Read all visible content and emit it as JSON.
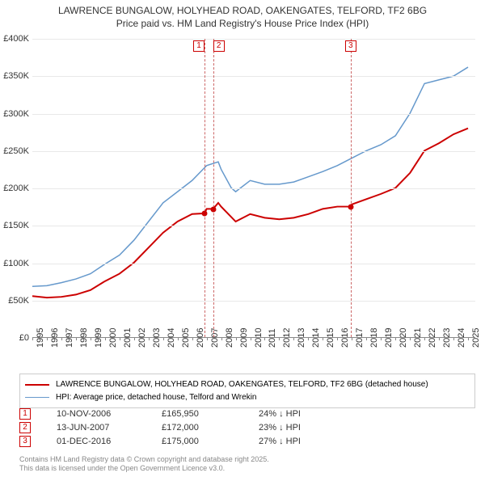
{
  "title_line1": "LAWRENCE BUNGALOW, HOLYHEAD ROAD, OAKENGATES, TELFORD, TF2 6BG",
  "title_line2": "Price paid vs. HM Land Registry's House Price Index (HPI)",
  "chart": {
    "type": "line",
    "background_color": "#ffffff",
    "grid_color": "#e8e8e8",
    "axis_color": "#888888",
    "text_color": "#333333",
    "tick_fontsize": 11,
    "ylim": [
      0,
      400000
    ],
    "ytick_step": 50000,
    "yticks": [
      "£0",
      "£50K",
      "£100K",
      "£150K",
      "£200K",
      "£250K",
      "£300K",
      "£350K",
      "£400K"
    ],
    "xlim": [
      1995,
      2025.5
    ],
    "xticks": [
      "1995",
      "1996",
      "1997",
      "1998",
      "1999",
      "2000",
      "2001",
      "2002",
      "2003",
      "2004",
      "2005",
      "2006",
      "2007",
      "2008",
      "2009",
      "2010",
      "2011",
      "2012",
      "2013",
      "2014",
      "2015",
      "2016",
      "2017",
      "2018",
      "2019",
      "2020",
      "2021",
      "2022",
      "2023",
      "2024",
      "2025"
    ],
    "series": [
      {
        "name": "LAWRENCE BUNGALOW, HOLYHEAD ROAD, OAKENGATES, TELFORD, TF2 6BG (detached house)",
        "color": "#cc0000",
        "line_width": 2,
        "data": [
          [
            1995,
            55000
          ],
          [
            1996,
            53000
          ],
          [
            1997,
            54000
          ],
          [
            1998,
            57000
          ],
          [
            1999,
            63000
          ],
          [
            2000,
            75000
          ],
          [
            2001,
            85000
          ],
          [
            2002,
            100000
          ],
          [
            2003,
            120000
          ],
          [
            2004,
            140000
          ],
          [
            2005,
            155000
          ],
          [
            2006,
            165000
          ],
          [
            2006.86,
            165950
          ],
          [
            2007,
            172000
          ],
          [
            2007.45,
            172000
          ],
          [
            2007.8,
            180000
          ],
          [
            2008,
            175000
          ],
          [
            2008.5,
            165000
          ],
          [
            2009,
            155000
          ],
          [
            2010,
            165000
          ],
          [
            2011,
            160000
          ],
          [
            2012,
            158000
          ],
          [
            2013,
            160000
          ],
          [
            2014,
            165000
          ],
          [
            2015,
            172000
          ],
          [
            2016,
            175000
          ],
          [
            2016.92,
            175000
          ],
          [
            2017,
            178000
          ],
          [
            2018,
            185000
          ],
          [
            2019,
            192000
          ],
          [
            2020,
            200000
          ],
          [
            2021,
            220000
          ],
          [
            2022,
            250000
          ],
          [
            2023,
            260000
          ],
          [
            2024,
            272000
          ],
          [
            2025,
            280000
          ]
        ]
      },
      {
        "name": "HPI: Average price, detached house, Telford and Wrekin",
        "color": "#6699cc",
        "line_width": 1.5,
        "data": [
          [
            1995,
            68000
          ],
          [
            1996,
            69000
          ],
          [
            1997,
            73000
          ],
          [
            1998,
            78000
          ],
          [
            1999,
            85000
          ],
          [
            2000,
            98000
          ],
          [
            2001,
            110000
          ],
          [
            2002,
            130000
          ],
          [
            2003,
            155000
          ],
          [
            2004,
            180000
          ],
          [
            2005,
            195000
          ],
          [
            2006,
            210000
          ],
          [
            2007,
            230000
          ],
          [
            2007.8,
            235000
          ],
          [
            2008,
            225000
          ],
          [
            2008.7,
            200000
          ],
          [
            2009,
            195000
          ],
          [
            2010,
            210000
          ],
          [
            2011,
            205000
          ],
          [
            2012,
            205000
          ],
          [
            2013,
            208000
          ],
          [
            2014,
            215000
          ],
          [
            2015,
            222000
          ],
          [
            2016,
            230000
          ],
          [
            2017,
            240000
          ],
          [
            2018,
            250000
          ],
          [
            2019,
            258000
          ],
          [
            2020,
            270000
          ],
          [
            2021,
            300000
          ],
          [
            2022,
            340000
          ],
          [
            2023,
            345000
          ],
          [
            2024,
            350000
          ],
          [
            2025,
            362000
          ]
        ]
      }
    ],
    "markers": [
      {
        "num": "1",
        "x": 2006.86,
        "y": 165950,
        "color": "#cc0000"
      },
      {
        "num": "2",
        "x": 2007.45,
        "y": 172000,
        "color": "#cc0000"
      },
      {
        "num": "3",
        "x": 2016.92,
        "y": 175000,
        "color": "#cc0000"
      }
    ],
    "marker_line_color": "#cc6666"
  },
  "legend": {
    "border_color": "#cccccc"
  },
  "sales": [
    {
      "num": "1",
      "date": "10-NOV-2006",
      "price": "£165,950",
      "diff": "24% ↓ HPI",
      "color": "#cc0000"
    },
    {
      "num": "2",
      "date": "13-JUN-2007",
      "price": "£172,000",
      "diff": "23% ↓ HPI",
      "color": "#cc0000"
    },
    {
      "num": "3",
      "date": "01-DEC-2016",
      "price": "£175,000",
      "diff": "27% ↓ HPI",
      "color": "#cc0000"
    }
  ],
  "footer_line1": "Contains HM Land Registry data © Crown copyright and database right 2025.",
  "footer_line2": "This data is licensed under the Open Government Licence v3.0."
}
